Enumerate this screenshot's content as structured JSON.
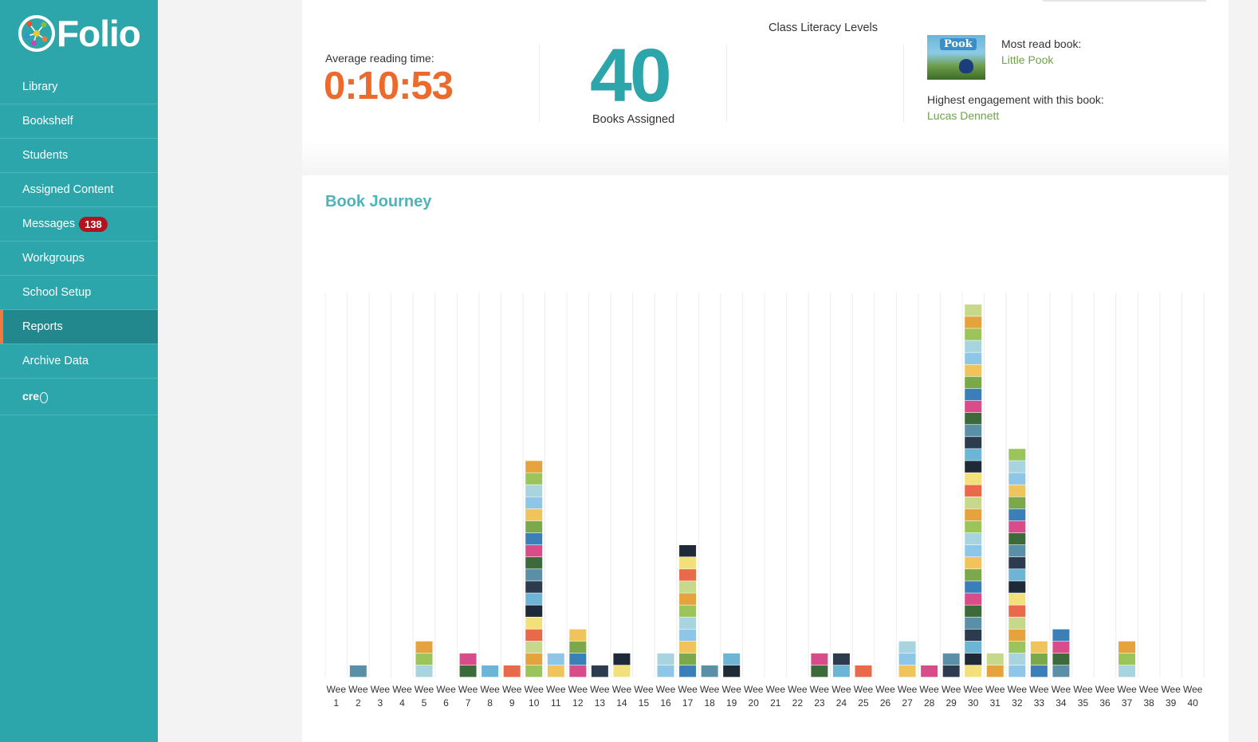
{
  "app": {
    "name": "Folio"
  },
  "sidebar": {
    "items": [
      {
        "label": "Library",
        "active": false
      },
      {
        "label": "Bookshelf",
        "active": false
      },
      {
        "label": "Students",
        "active": false
      },
      {
        "label": "Assigned Content",
        "active": false
      },
      {
        "label": "Messages",
        "badge": "138",
        "active": false
      },
      {
        "label": "Workgroups",
        "active": false
      },
      {
        "label": "School Setup",
        "active": false
      },
      {
        "label": "Reports",
        "active": true
      },
      {
        "label": "Archive Data",
        "active": false
      },
      {
        "label": "cre",
        "active": false
      }
    ]
  },
  "stats": {
    "average_reading_time": {
      "label": "Average reading time:",
      "value": "0:10:53"
    },
    "books_assigned": {
      "value": "40",
      "label": "Books Assigned"
    },
    "class_literacy": {
      "title": "Class Literacy Levels"
    },
    "most_read": {
      "label": "Most read book:",
      "book": "Little Pook",
      "cover_text": "Pook",
      "engagement_label": "Highest engagement with this book:",
      "engagement_student": "Lucas Dennett"
    }
  },
  "journey": {
    "title": "Book Journey"
  },
  "colors": {
    "brand": "#2ca5ab",
    "accent": "#ec6a2b",
    "badge": "#b5121b",
    "link": "#6fa24a"
  },
  "chart_data": {
    "type": "bar",
    "title": "Book Journey",
    "categories": [
      "Wee 1",
      "Wee 2",
      "Wee 3",
      "Wee 4",
      "Wee 5",
      "Wee 6",
      "Wee 7",
      "Wee 8",
      "Wee 9",
      "Wee 10",
      "Wee 11",
      "Wee 12",
      "Wee 13",
      "Wee 14",
      "Wee 15",
      "Wee 16",
      "Wee 17",
      "Wee 18",
      "Wee 19",
      "Wee 20",
      "Wee 21",
      "Wee 22",
      "Wee 23",
      "Wee 24",
      "Wee 25",
      "Wee 26",
      "Wee 27",
      "Wee 28",
      "Wee 29",
      "Wee 30",
      "Wee 31",
      "Wee 32",
      "Wee 33",
      "Wee 34",
      "Wee 35",
      "Wee 36",
      "Wee 37",
      "Wee 38",
      "Wee 39",
      "Wee 40"
    ],
    "category_lines": [
      [
        "Wee",
        "1"
      ],
      [
        "Wee",
        "2"
      ],
      [
        "Wee",
        "3"
      ],
      [
        "Wee",
        "4"
      ],
      [
        "Wee",
        "5"
      ],
      [
        "Wee",
        "6"
      ],
      [
        "Wee",
        "7"
      ],
      [
        "Wee",
        "8"
      ],
      [
        "Wee",
        "9"
      ],
      [
        "Wee",
        "10"
      ],
      [
        "Wee",
        "11"
      ],
      [
        "Wee",
        "12"
      ],
      [
        "Wee",
        "13"
      ],
      [
        "Wee",
        "14"
      ],
      [
        "Wee",
        "15"
      ],
      [
        "Wee",
        "16"
      ],
      [
        "Wee",
        "17"
      ],
      [
        "Wee",
        "18"
      ],
      [
        "Wee",
        "19"
      ],
      [
        "Wee",
        "20"
      ],
      [
        "Wee",
        "21"
      ],
      [
        "Wee",
        "22"
      ],
      [
        "Wee",
        "23"
      ],
      [
        "Wee",
        "24"
      ],
      [
        "Wee",
        "25"
      ],
      [
        "Wee",
        "26"
      ],
      [
        "Wee",
        "27"
      ],
      [
        "Wee",
        "28"
      ],
      [
        "Wee",
        "29"
      ],
      [
        "Wee",
        "30"
      ],
      [
        "Wee",
        "31"
      ],
      [
        "Wee",
        "32"
      ],
      [
        "Wee",
        "33"
      ],
      [
        "Wee",
        "34"
      ],
      [
        "Wee",
        "35"
      ],
      [
        "Wee",
        "36"
      ],
      [
        "Wee",
        "37"
      ],
      [
        "Wee",
        "38"
      ],
      [
        "Wee",
        "39"
      ],
      [
        "Wee",
        "40"
      ]
    ],
    "values": [
      0,
      1,
      0,
      0,
      3,
      0,
      2,
      1,
      1,
      18,
      2,
      4,
      1,
      2,
      0,
      2,
      11,
      1,
      2,
      0,
      0,
      0,
      2,
      2,
      1,
      0,
      3,
      1,
      2,
      31,
      2,
      19,
      3,
      4,
      0,
      0,
      3,
      0,
      0,
      0
    ],
    "ylim": [
      0,
      32
    ],
    "grid": true,
    "legend": "none"
  }
}
